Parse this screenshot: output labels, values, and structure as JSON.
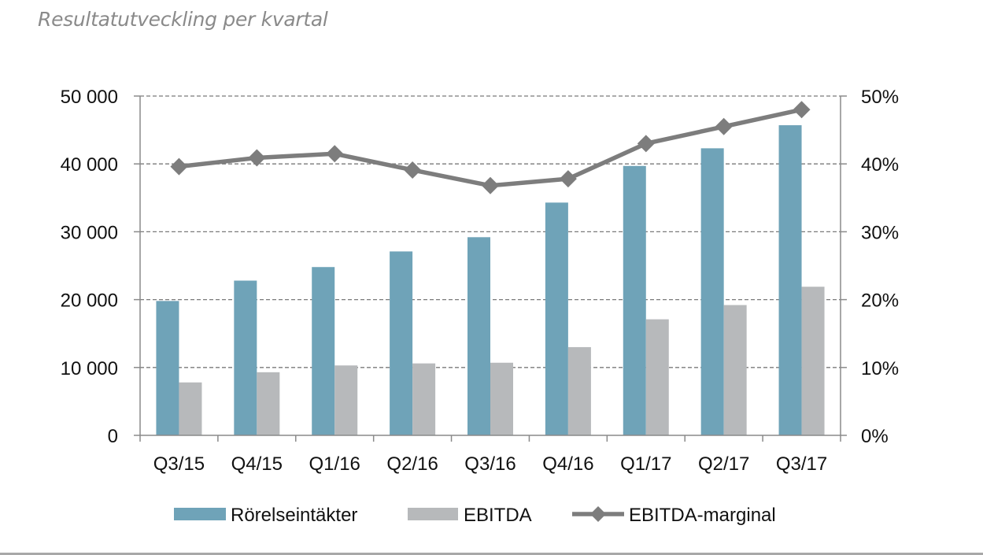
{
  "page": {
    "title": "Resultatutveckling per kvartal"
  },
  "chart_data": {
    "type": "bar",
    "title": "Resultatutveckling per kvartal",
    "categories": [
      "Q3/15",
      "Q4/15",
      "Q1/16",
      "Q2/16",
      "Q3/16",
      "Q4/16",
      "Q1/17",
      "Q2/17",
      "Q3/17"
    ],
    "series": [
      {
        "name": "Rörelseintäkter",
        "type": "bar",
        "axis": "left",
        "color": "#6fa3b8",
        "values": [
          19800,
          22800,
          24800,
          27100,
          29200,
          34300,
          39700,
          42300,
          45700
        ]
      },
      {
        "name": "EBITDA",
        "type": "bar",
        "axis": "left",
        "color": "#b7b9bb",
        "values": [
          7800,
          9300,
          10300,
          10600,
          10700,
          13000,
          17100,
          19200,
          21900
        ]
      },
      {
        "name": "EBITDA-marginal",
        "type": "line",
        "axis": "right",
        "marker": "diamond",
        "color": "#7d7d7d",
        "values": [
          39.6,
          40.9,
          41.5,
          39.1,
          36.8,
          37.8,
          43.0,
          45.5,
          48.0
        ]
      }
    ],
    "ylim": [
      0,
      50000
    ],
    "y_ticks": [
      "0",
      "10 000",
      "20 000",
      "30 000",
      "40 000",
      "50 000"
    ],
    "y2lim": [
      0,
      50
    ],
    "y2_ticks": [
      "0%",
      "10%",
      "20%",
      "30%",
      "40%",
      "50%"
    ],
    "grid": "horizontal dashed",
    "legend": "bottom"
  }
}
